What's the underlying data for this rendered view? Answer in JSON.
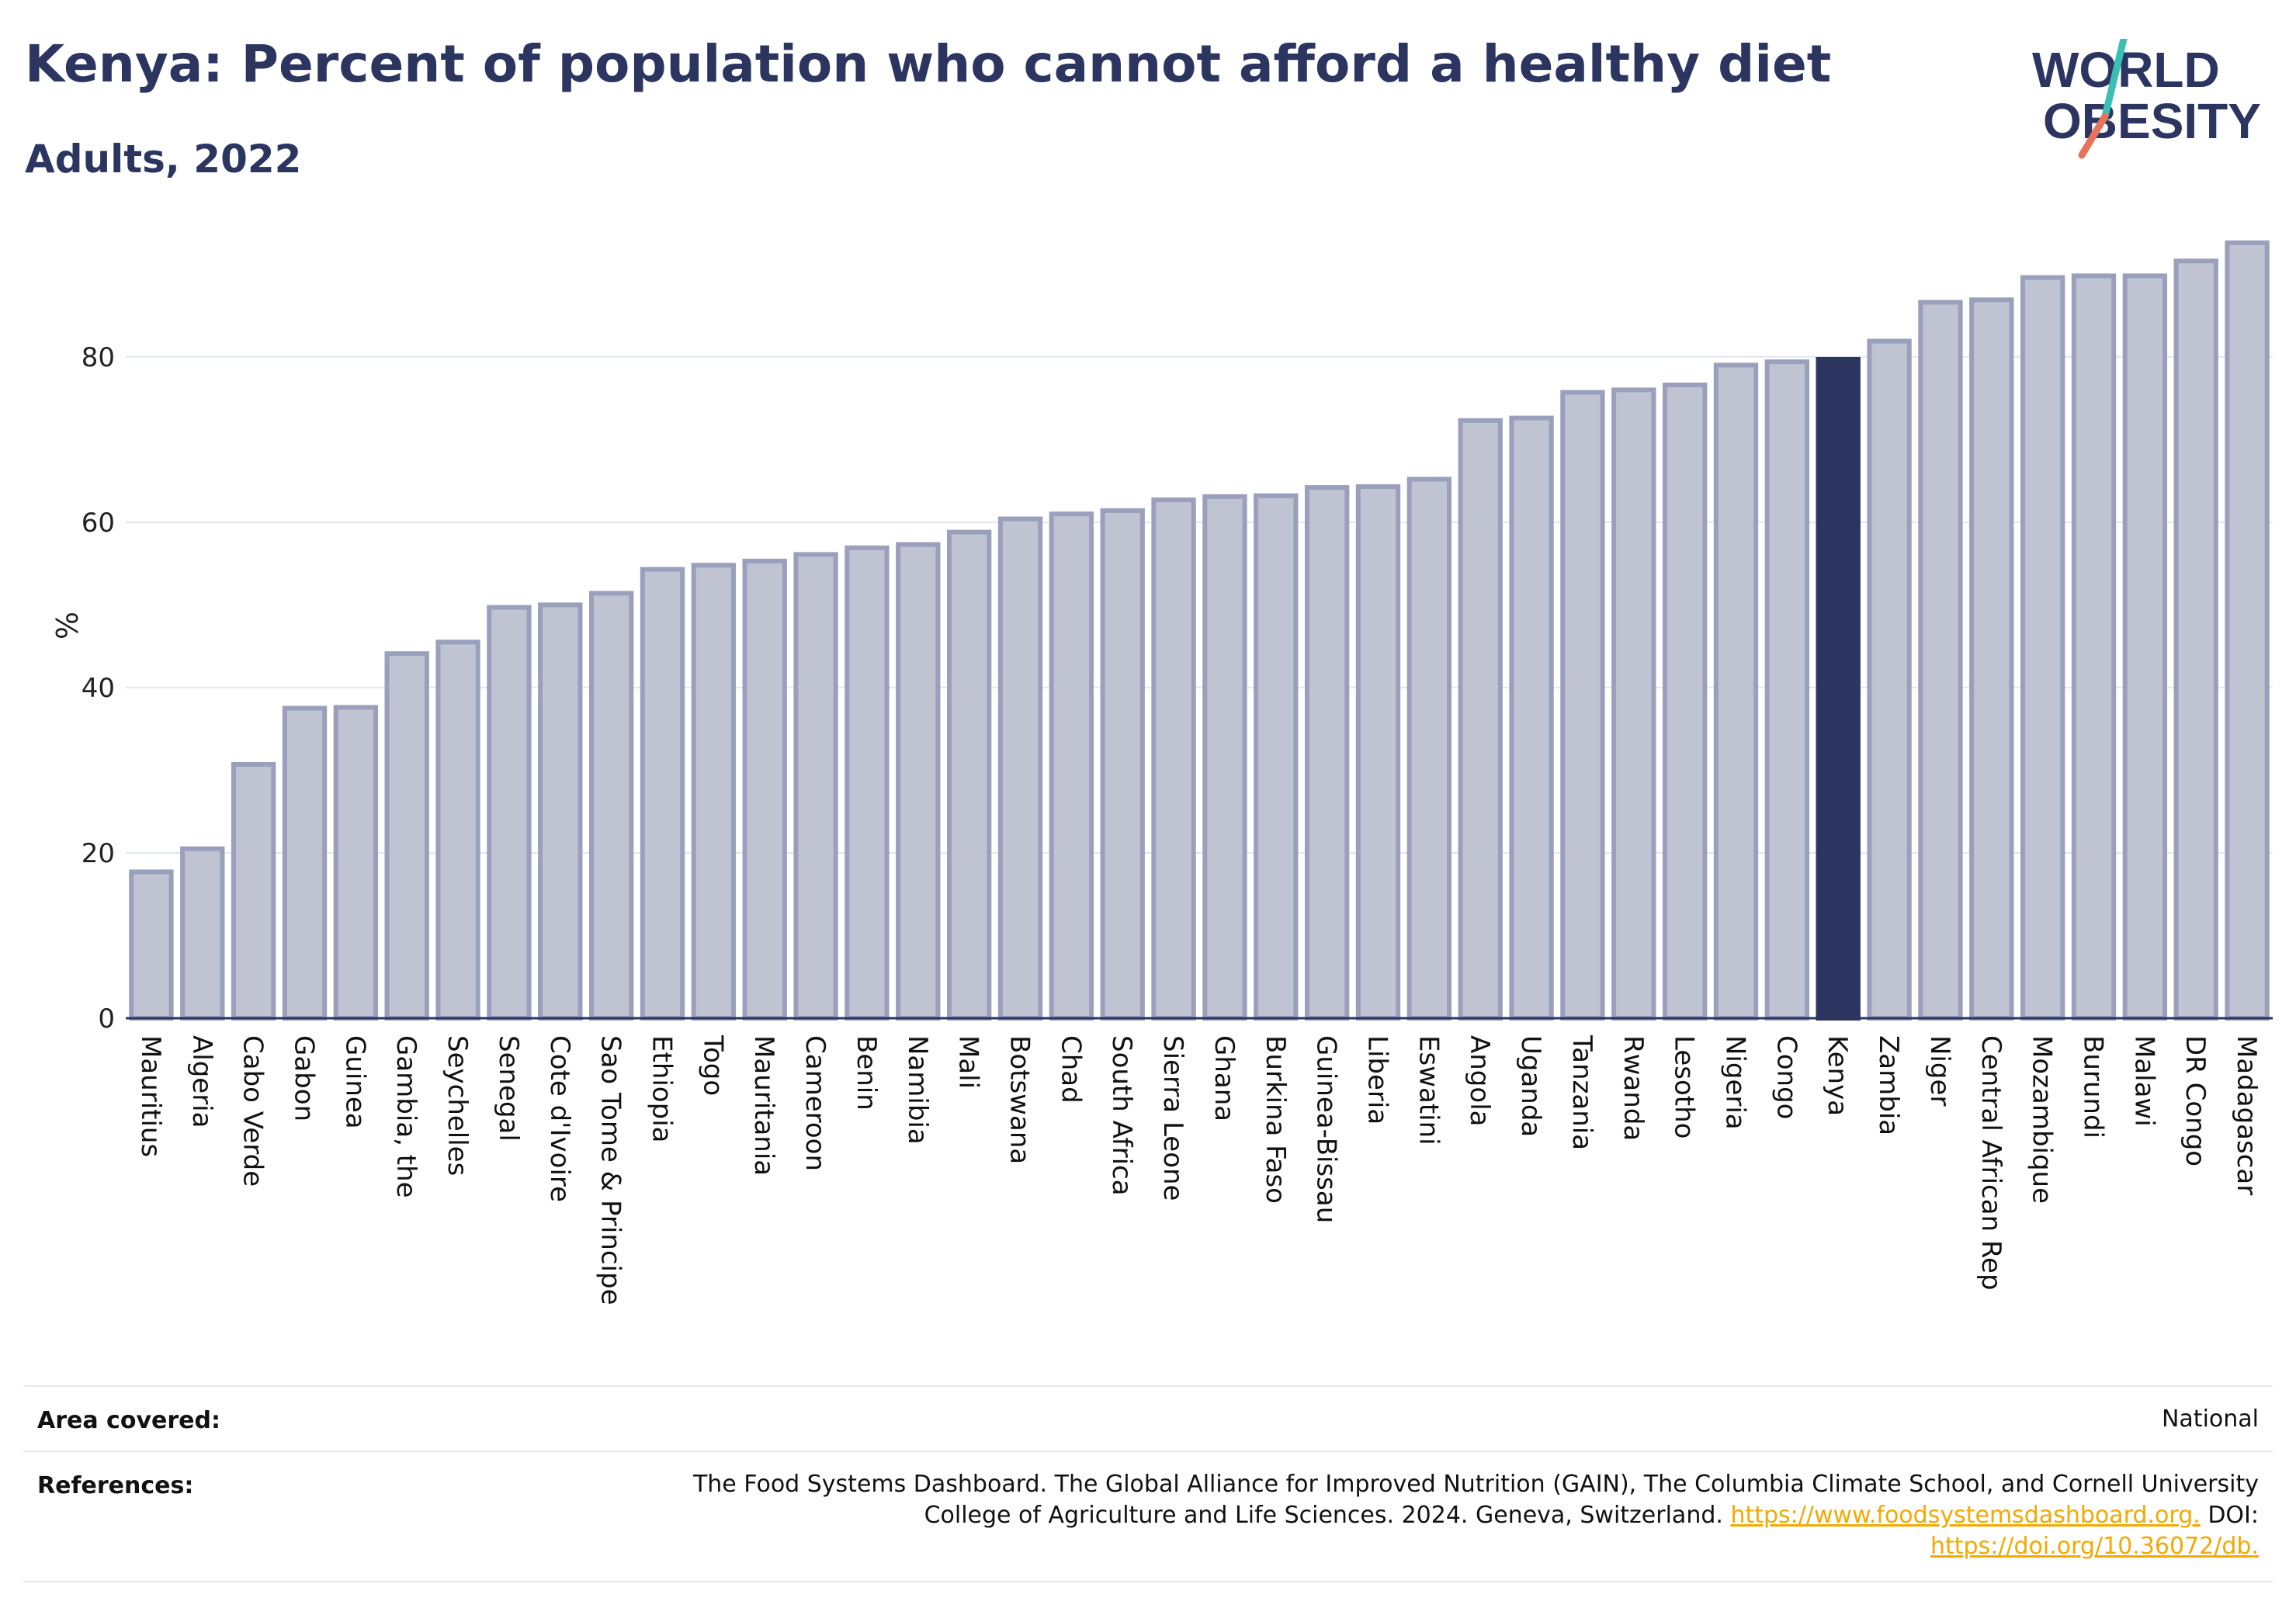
{
  "header": {
    "title": "Kenya: Percent of population who cannot afford a healthy diet",
    "subtitle": "Adults, 2022",
    "logo_top": "WORLD",
    "logo_bottom": "OBESITY"
  },
  "colors": {
    "bar_fill": "#bfc3d2",
    "bar_stroke": "#9aa0bb",
    "highlight": "#2b3560",
    "text": "#2b3560",
    "grid": "#e3e6ef",
    "link": "#f2a900",
    "logo_teal": "#3bbfb5",
    "logo_coral": "#e8735c"
  },
  "chart_data": {
    "type": "bar",
    "ylabel": "%",
    "ylim": [
      0,
      95
    ],
    "yticks": [
      0,
      20,
      40,
      60,
      80
    ],
    "grid": true,
    "highlight": "Kenya",
    "categories": [
      "Mauritius",
      "Algeria",
      "Cabo Verde",
      "Gabon",
      "Guinea",
      "Gambia, the",
      "Seychelles",
      "Senegal",
      "Cote d'Ivoire",
      "Sao Tome & Principe",
      "Ethiopia",
      "Togo",
      "Mauritania",
      "Cameroon",
      "Benin",
      "Namibia",
      "Mali",
      "Botswana",
      "Chad",
      "South Africa",
      "Sierra Leone",
      "Ghana",
      "Burkina Faso",
      "Guinea-Bissau",
      "Liberia",
      "Eswatini",
      "Angola",
      "Uganda",
      "Tanzania",
      "Rwanda",
      "Lesotho",
      "Nigeria",
      "Congo",
      "Kenya",
      "Zambia",
      "Niger",
      "Central African Rep",
      "Mozambique",
      "Burundi",
      "Malawi",
      "DR Congo",
      "Madagascar"
    ],
    "values": [
      17.7,
      20.5,
      30.7,
      37.5,
      37.6,
      44.1,
      45.5,
      49.7,
      50.0,
      51.4,
      54.3,
      54.8,
      55.3,
      56.1,
      56.9,
      57.3,
      58.8,
      60.4,
      61.0,
      61.4,
      62.7,
      63.1,
      63.2,
      64.2,
      64.3,
      65.2,
      72.3,
      72.6,
      75.7,
      76.0,
      76.6,
      79.0,
      79.4,
      79.7,
      81.9,
      86.6,
      86.9,
      89.6,
      89.8,
      89.8,
      91.6,
      93.8
    ]
  },
  "footer": {
    "area_label": "Area covered:",
    "area_value": "National",
    "refs_label": "References:",
    "ref_line1": "The Food Systems Dashboard. The Global Alliance for Improved Nutrition (GAIN), The Columbia Climate School, and Cornell University",
    "ref_line2": "College of Agriculture and Life Sciences. 2024. Geneva, Switzerland.",
    "ref_link1": "https://www.foodsystemsdashboard.org.",
    "ref_doi": "DOI:",
    "ref_link2": "https://doi.org/10.36072/db."
  }
}
